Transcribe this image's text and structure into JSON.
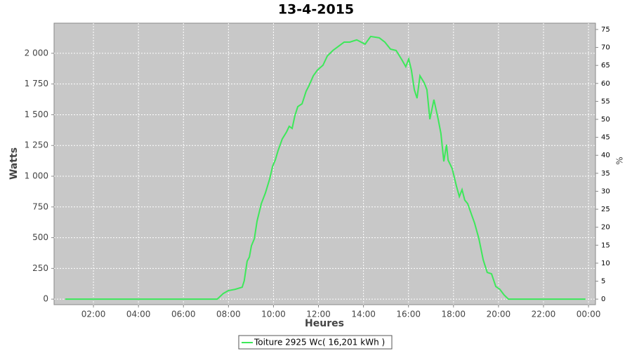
{
  "chart_data": {
    "type": "line",
    "title": "13-4-2015",
    "xlabel": "Heures",
    "ylabel": "Watts",
    "y2label": "%",
    "x": [
      0.75,
      7.5,
      7.77,
      7.99,
      8.3,
      8.61,
      8.7,
      8.83,
      8.93,
      9.02,
      9.15,
      9.27,
      9.46,
      9.64,
      9.83,
      9.96,
      10.08,
      10.2,
      10.39,
      10.58,
      10.7,
      10.83,
      10.95,
      11.08,
      11.27,
      11.45,
      11.58,
      11.77,
      11.95,
      12.2,
      12.39,
      12.64,
      12.89,
      13.14,
      13.39,
      13.7,
      14.07,
      14.32,
      14.7,
      14.95,
      15.2,
      15.45,
      15.7,
      15.88,
      16.01,
      16.13,
      16.26,
      16.38,
      16.51,
      16.7,
      16.82,
      16.95,
      17.13,
      17.32,
      17.44,
      17.57,
      17.69,
      17.76,
      17.94,
      18.13,
      18.26,
      18.38,
      18.5,
      18.63,
      18.76,
      18.94,
      19.13,
      19.32,
      19.5,
      19.69,
      19.88,
      20.06,
      20.25,
      20.44,
      23.87
    ],
    "series": [
      {
        "name": "Toiture 2925 Wc( 16,201 kWh )",
        "color": "#3de85a",
        "values": [
          0,
          0,
          46,
          69,
          80,
          97,
          149,
          309,
          343,
          434,
          491,
          634,
          777,
          863,
          977,
          1080,
          1131,
          1206,
          1303,
          1360,
          1406,
          1389,
          1491,
          1566,
          1589,
          1691,
          1737,
          1817,
          1863,
          1903,
          1977,
          2023,
          2057,
          2091,
          2091,
          2109,
          2074,
          2137,
          2126,
          2091,
          2034,
          2023,
          1949,
          1891,
          1954,
          1863,
          1703,
          1634,
          1817,
          1760,
          1703,
          1463,
          1623,
          1463,
          1349,
          1120,
          1257,
          1131,
          1063,
          920,
          834,
          891,
          806,
          777,
          709,
          617,
          491,
          320,
          217,
          206,
          103,
          80,
          34,
          0,
          0
        ]
      }
    ],
    "xlim": [
      0.25,
      24.31
    ],
    "xticks": [
      {
        "value": 2,
        "label": "02:00"
      },
      {
        "value": 4,
        "label": "04:00"
      },
      {
        "value": 6,
        "label": "06:00"
      },
      {
        "value": 8,
        "label": "08:00"
      },
      {
        "value": 10,
        "label": "10:00"
      },
      {
        "value": 12,
        "label": "12:00"
      },
      {
        "value": 14,
        "label": "14:00"
      },
      {
        "value": 16,
        "label": "16:00"
      },
      {
        "value": 18,
        "label": "18:00"
      },
      {
        "value": 20,
        "label": "20:00"
      },
      {
        "value": 22,
        "label": "22:00"
      },
      {
        "value": 24,
        "label": "00:00"
      }
    ],
    "ylim": [
      -45,
      2245
    ],
    "yticks": [
      0,
      250,
      500,
      750,
      {
        "value": 1000,
        "label": "1 000"
      },
      {
        "value": 1250,
        "label": "1 250"
      },
      {
        "value": 1500,
        "label": "1 500"
      },
      {
        "value": 1750,
        "label": "1 750"
      },
      {
        "value": 2000,
        "label": "2 000"
      }
    ],
    "y2lim": [
      -1.54,
      76.75
    ],
    "y2ticks": [
      0,
      5,
      10,
      15,
      20,
      25,
      30,
      35,
      40,
      45,
      50,
      55,
      60,
      65,
      70,
      75
    ],
    "grid": true
  }
}
